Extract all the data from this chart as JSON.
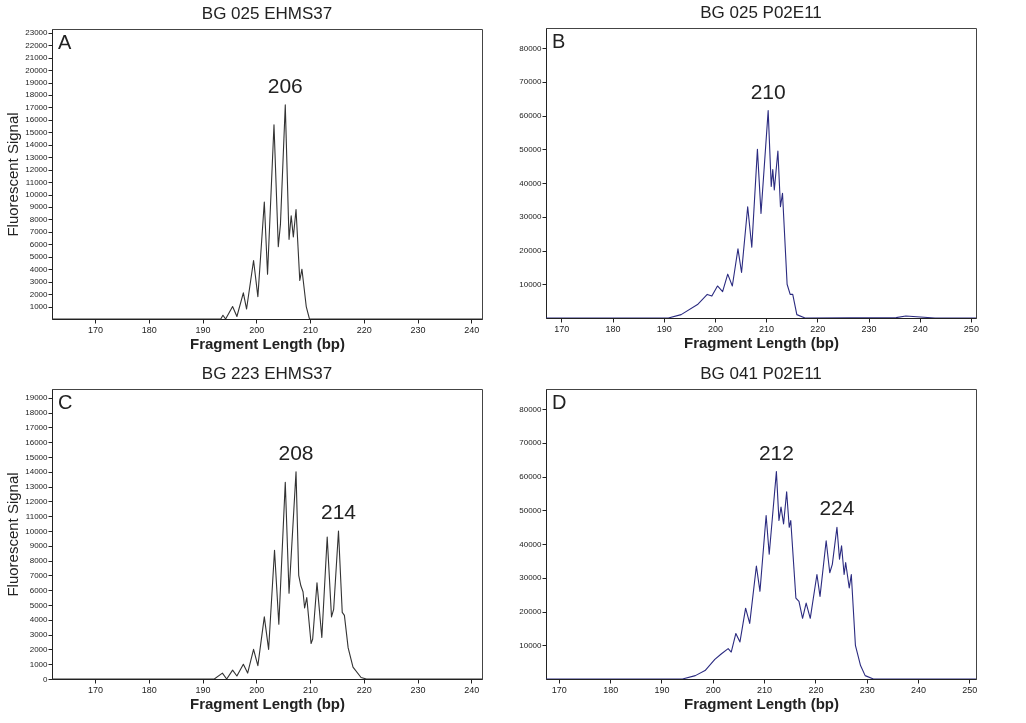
{
  "chart_data": [
    {
      "type": "line",
      "title": "BG 025 EHMS37",
      "xlabel": "Fragment Length (bp)",
      "ylabel": "Fluorescent Signal",
      "color": "#333333",
      "xlim": [
        162,
        242
      ],
      "ylim": [
        0,
        23300
      ],
      "xticks": [
        170,
        180,
        190,
        200,
        210,
        220,
        230,
        240
      ],
      "yticks": [
        1000,
        2000,
        3000,
        4000,
        5000,
        6000,
        7000,
        8000,
        9000,
        10000,
        11000,
        12000,
        13000,
        14000,
        15000,
        16000,
        17000,
        18000,
        19000,
        20000,
        21000,
        22000,
        23000
      ],
      "x": [
        162,
        183,
        193.4,
        193.8,
        194.3,
        195.6,
        196.4,
        197.6,
        198.2,
        199.5,
        200.3,
        201.5,
        202.1,
        203.3,
        204.1,
        204.5,
        205.4,
        206.1,
        206.5,
        206.9,
        207.4,
        208.1,
        208.5,
        209.3,
        209.9,
        242
      ],
      "values": [
        0,
        0,
        0,
        300,
        0,
        1000,
        200,
        2100,
        800,
        4700,
        1800,
        9400,
        3600,
        15600,
        5800,
        7600,
        17200,
        6400,
        8300,
        6600,
        8800,
        3100,
        4000,
        1000,
        0,
        0
      ],
      "annotations": [
        "A",
        {
          "text": "206",
          "x": 205.4,
          "y": 17200
        }
      ]
    },
    {
      "type": "line",
      "title": "BG 025 P02E11",
      "xlabel": "Fragment Length (bp)",
      "color": "#2b2b80",
      "xlim": [
        167,
        251
      ],
      "ylim": [
        0,
        86000
      ],
      "xticks": [
        170,
        180,
        190,
        200,
        210,
        220,
        230,
        240,
        250
      ],
      "yticks": [
        10000,
        20000,
        30000,
        40000,
        50000,
        60000,
        70000,
        80000
      ],
      "x": [
        167,
        190.9,
        193.4,
        196.6,
        198.5,
        199.4,
        200.5,
        201.5,
        202.5,
        203.4,
        204.5,
        205.2,
        206.4,
        207.2,
        208.3,
        209.0,
        210.4,
        211.0,
        211.3,
        211.6,
        212.3,
        212.8,
        213.2,
        214.1,
        214.7,
        215.2,
        216.0,
        217.6,
        235.4,
        237.3,
        243,
        251
      ],
      "values": [
        0,
        0,
        1000,
        4000,
        7000,
        6500,
        9500,
        7800,
        13000,
        9500,
        20500,
        13500,
        33000,
        21000,
        50000,
        31000,
        61500,
        39000,
        44000,
        38000,
        49500,
        33000,
        37000,
        10000,
        7000,
        7000,
        1000,
        0,
        100,
        600,
        0,
        0
      ],
      "annotations": [
        "B",
        {
          "text": "210",
          "x": 210.4,
          "y": 61500
        }
      ]
    },
    {
      "type": "line",
      "title": "BG 223 EHMS37",
      "xlabel": "Fragment Length (bp)",
      "ylabel": "Fluorescent Signal",
      "color": "#333333",
      "xlim": [
        162,
        242
      ],
      "ylim": [
        0,
        19600
      ],
      "xticks": [
        170,
        180,
        190,
        200,
        210,
        220,
        230,
        240
      ],
      "yticks": [
        0,
        1000,
        2000,
        3000,
        4000,
        5000,
        6000,
        7000,
        8000,
        9000,
        10000,
        11000,
        12000,
        13000,
        14000,
        15000,
        16000,
        17000,
        18000,
        19000
      ],
      "x": [
        162,
        192.2,
        193.7,
        194.5,
        195.6,
        196.4,
        197.6,
        198.4,
        199.5,
        200.3,
        201.5,
        202.3,
        203.4,
        204.2,
        205.4,
        206.1,
        207.4,
        207.9,
        208.3,
        208.7,
        209.0,
        209.4,
        210.2,
        210.5,
        211.3,
        212.2,
        213.2,
        214.0,
        214.4,
        215.3,
        216.0,
        216.4,
        217.1,
        218.0,
        219.5,
        220.5,
        242
      ],
      "values": [
        0,
        0,
        400,
        0,
        600,
        200,
        1000,
        400,
        2000,
        900,
        4200,
        2000,
        8700,
        3700,
        13300,
        5800,
        14000,
        7000,
        6300,
        5900,
        4800,
        5500,
        2400,
        2700,
        6500,
        2800,
        9600,
        4200,
        4700,
        10000,
        4500,
        4300,
        2100,
        800,
        100,
        0,
        0
      ],
      "annotations": [
        "C",
        {
          "text": "208",
          "x": 207.4,
          "y": 14000
        },
        {
          "text": "214",
          "x": 215.3,
          "y": 10000
        }
      ]
    },
    {
      "type": "line",
      "title": "BG 041 P02E11",
      "xlabel": "Fragment Length (bp)",
      "color": "#2b2b80",
      "xlim": [
        167.5,
        251.3
      ],
      "ylim": [
        0,
        86000
      ],
      "xticks": [
        170,
        180,
        190,
        200,
        210,
        220,
        230,
        240,
        250
      ],
      "yticks": [
        10000,
        20000,
        30000,
        40000,
        50000,
        60000,
        70000,
        80000
      ],
      "x": [
        167.5,
        194.1,
        196.6,
        198.5,
        200.4,
        201.7,
        203.0,
        203.6,
        204.5,
        205.3,
        206.4,
        207.2,
        208.5,
        209.2,
        210.4,
        211.0,
        212.4,
        212.9,
        213.3,
        213.8,
        214.4,
        214.9,
        215.2,
        216.2,
        216.8,
        217.5,
        218.2,
        219.0,
        220.3,
        220.9,
        222.1,
        222.8,
        223.3,
        224.2,
        224.7,
        225.1,
        225.6,
        225.9,
        226.6,
        227.0,
        227.8,
        228.8,
        229.7,
        231.3,
        251.3
      ],
      "values": [
        0,
        0,
        1000,
        2500,
        5800,
        7500,
        9000,
        8000,
        13500,
        11000,
        21000,
        16500,
        33500,
        26000,
        48500,
        37000,
        61500,
        47000,
        51000,
        46000,
        55500,
        45000,
        47000,
        24000,
        23000,
        18000,
        22500,
        18000,
        31000,
        24500,
        41000,
        31500,
        34000,
        45000,
        35500,
        39500,
        31000,
        34500,
        27000,
        31000,
        10000,
        4000,
        1000,
        0,
        0
      ],
      "annotations": [
        "D",
        {
          "text": "212",
          "x": 212.4,
          "y": 61500
        },
        {
          "text": "224",
          "x": 224.2,
          "y": 45000
        }
      ]
    }
  ]
}
